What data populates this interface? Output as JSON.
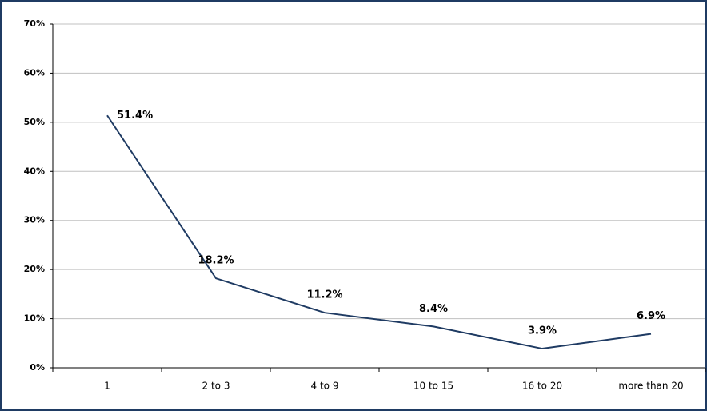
{
  "chart_data": {
    "type": "line",
    "categories": [
      "1",
      "2 to 3",
      "4 to 9",
      "10 to 15",
      "16 to 20",
      "more than 20"
    ],
    "values": [
      51.4,
      18.2,
      11.2,
      8.4,
      3.9,
      6.9
    ],
    "value_labels": [
      "51.4%",
      "18.2%",
      "11.2%",
      "8.4%",
      "3.9%",
      "6.9%"
    ],
    "color": "#1f3b63",
    "ylim": [
      0,
      70
    ],
    "yticks": [
      {
        "value": 0,
        "label": "0%"
      },
      {
        "value": 10,
        "label": "10%"
      },
      {
        "value": 20,
        "label": "20%"
      },
      {
        "value": 30,
        "label": "30%"
      },
      {
        "value": 40,
        "label": "40%"
      },
      {
        "value": 50,
        "label": "50%"
      },
      {
        "value": 60,
        "label": "60%"
      },
      {
        "value": 70,
        "label": "70%"
      }
    ],
    "grid": true
  }
}
